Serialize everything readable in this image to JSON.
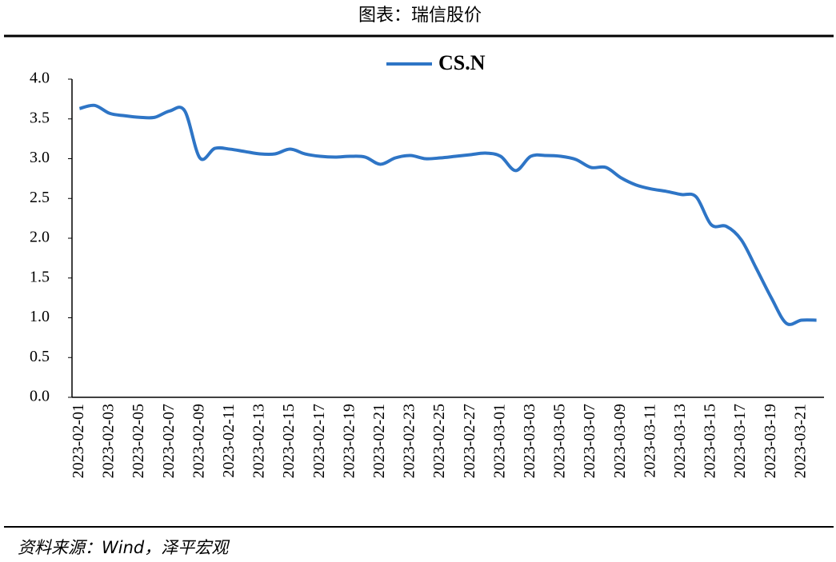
{
  "chart_data": {
    "type": "line",
    "title": "图表：瑞信股价",
    "source": "资料来源：Wind，泽平宏观",
    "categories": [
      "2023-02-01",
      null,
      "2023-02-03",
      null,
      "2023-02-05",
      null,
      "2023-02-07",
      null,
      "2023-02-09",
      null,
      "2023-02-11",
      null,
      "2023-02-13",
      null,
      "2023-02-15",
      null,
      "2023-02-17",
      null,
      "2023-02-19",
      null,
      "2023-02-21",
      null,
      "2023-02-23",
      null,
      "2023-02-25",
      null,
      "2023-02-27",
      null,
      "2023-03-01",
      null,
      "2023-03-03",
      null,
      "2023-03-05",
      null,
      "2023-03-07",
      null,
      "2023-03-09",
      null,
      "2023-03-11",
      null,
      "2023-03-13",
      null,
      "2023-03-15",
      null,
      "2023-03-17",
      null,
      "2023-03-19",
      null,
      "2023-03-21",
      null
    ],
    "series": [
      {
        "name": "CS.N",
        "color": "#2e75c6",
        "values": [
          3.63,
          3.67,
          3.57,
          3.54,
          3.52,
          3.52,
          3.6,
          3.6,
          3.01,
          3.13,
          3.12,
          3.09,
          3.06,
          3.06,
          3.12,
          3.06,
          3.03,
          3.02,
          3.03,
          3.02,
          2.93,
          3.01,
          3.04,
          3.0,
          3.01,
          3.03,
          3.05,
          3.07,
          3.03,
          2.85,
          3.03,
          3.04,
          3.03,
          2.99,
          2.89,
          2.89,
          2.76,
          2.67,
          2.62,
          2.59,
          2.55,
          2.52,
          2.17,
          2.15,
          1.98,
          1.62,
          1.25,
          0.93,
          0.97,
          0.97
        ]
      }
    ],
    "ylim": [
      0,
      4
    ],
    "yticks": [
      {
        "value": 0,
        "label": "0.0"
      },
      0.5,
      {
        "value": 1,
        "label": "1.0"
      },
      1.5,
      {
        "value": 2,
        "label": "2.0"
      },
      2.5,
      {
        "value": 3,
        "label": "3.0"
      },
      3.5,
      {
        "value": 4,
        "label": "4.0"
      }
    ],
    "legend": "top",
    "grid": false
  }
}
